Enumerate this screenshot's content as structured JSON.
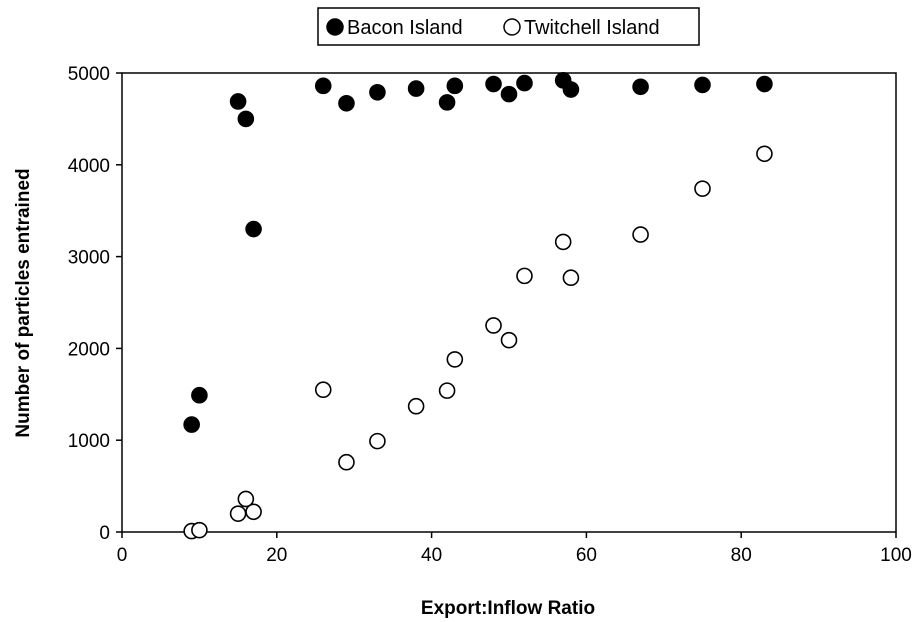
{
  "chart_data": {
    "type": "scatter",
    "xlabel": "Export:Inflow Ratio",
    "ylabel": "Number of particles entrained",
    "xlim": [
      0,
      100
    ],
    "ylim": [
      0,
      5000
    ],
    "xticks": [
      0,
      20,
      40,
      60,
      80,
      100
    ],
    "yticks": [
      0,
      1000,
      2000,
      3000,
      4000,
      5000
    ],
    "grid": false,
    "legend_position": "top-center",
    "series": [
      {
        "name": "Bacon Island",
        "marker": "filled-circle",
        "color": "#000000",
        "x": [
          9,
          10,
          15,
          16,
          17,
          26,
          29,
          33,
          38,
          42,
          43,
          48,
          50,
          52,
          57,
          58,
          67,
          75,
          83
        ],
        "y": [
          1170,
          1490,
          4690,
          4500,
          3300,
          4860,
          4670,
          4790,
          4830,
          4680,
          4860,
          4880,
          4770,
          4890,
          4920,
          4820,
          4850,
          4870,
          4880
        ]
      },
      {
        "name": "Twitchell Island",
        "marker": "open-circle",
        "color": "#000000",
        "x": [
          9,
          10,
          15,
          16,
          17,
          26,
          29,
          33,
          38,
          42,
          43,
          48,
          50,
          52,
          57,
          58,
          67,
          75,
          83
        ],
        "y": [
          10,
          20,
          200,
          360,
          220,
          1550,
          760,
          990,
          1370,
          1540,
          1880,
          2250,
          2090,
          2790,
          3160,
          2770,
          3240,
          3740,
          4120
        ]
      }
    ]
  }
}
